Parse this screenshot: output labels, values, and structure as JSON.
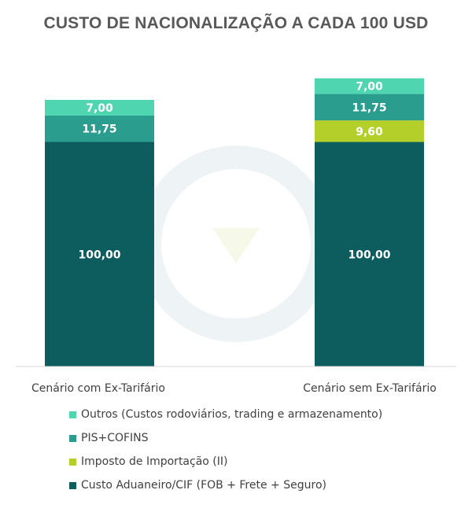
{
  "chart_data": {
    "type": "bar",
    "stacked": true,
    "title": "CUSTO DE NACIONALIZAÇÃO A CADA 100 USD",
    "categories": [
      "Cenário com Ex-Tarifário",
      "Cenário sem Ex-Tarifário"
    ],
    "series": [
      {
        "name": "Custo Aduaneiro/CIF (FOB + Frete + Seguro)",
        "color": "#0d5c5e",
        "values": [
          100.0,
          100.0
        ],
        "labels": [
          "100,00",
          "100,00"
        ]
      },
      {
        "name": "Imposto de Importação (II)",
        "color": "#b5cf2a",
        "values": [
          0,
          9.6
        ],
        "labels": [
          "",
          "9,60"
        ]
      },
      {
        "name": "PIS+COFINS",
        "color": "#2a9d8f",
        "values": [
          11.75,
          11.75
        ],
        "labels": [
          "11,75",
          "11,75"
        ]
      },
      {
        "name": "Outros (Custos rodoviários, trading e armazenamento)",
        "color": "#4fd6b0",
        "values": [
          7.0,
          7.0
        ],
        "labels": [
          "7,00",
          "7,00"
        ]
      }
    ],
    "legend_order": [
      3,
      2,
      1,
      0
    ],
    "legend_position": "bottom",
    "grid": false
  }
}
